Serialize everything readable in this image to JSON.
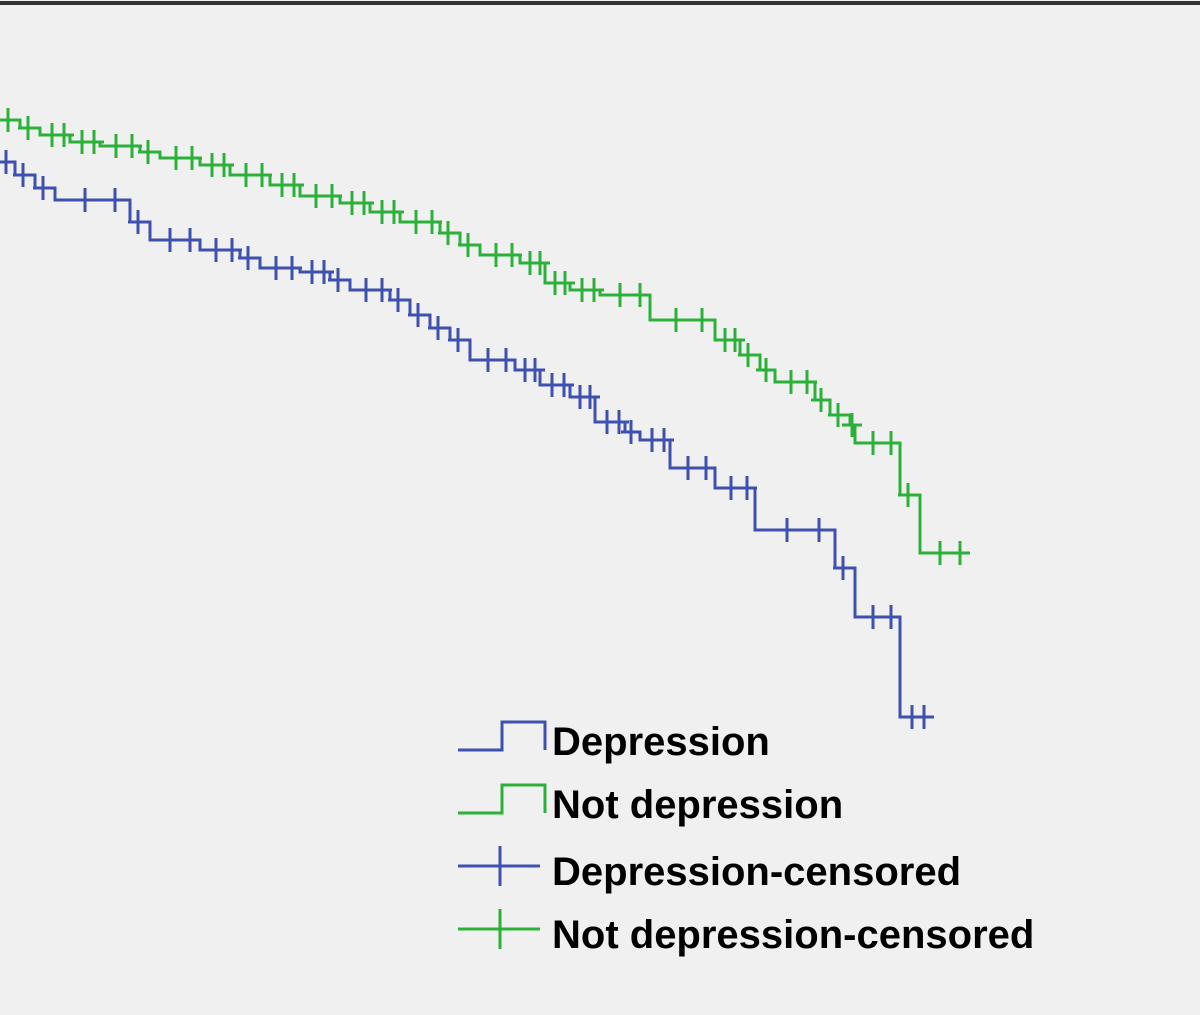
{
  "legend": {
    "items": [
      {
        "label": "Depression",
        "color": "#3f51b0",
        "kind": "step"
      },
      {
        "label": "Not depression",
        "color": "#2bb03a",
        "kind": "step"
      },
      {
        "label": "Depression-censored",
        "color": "#3f51b0",
        "kind": "censor"
      },
      {
        "label": "Not depression-censored",
        "color": "#2bb03a",
        "kind": "censor"
      }
    ]
  }
}
